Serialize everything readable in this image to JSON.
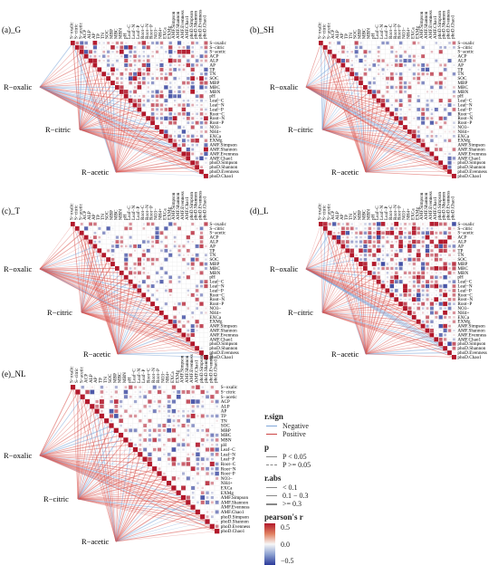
{
  "variables": [
    "S−oxalic",
    "S−citric",
    "S−acetic",
    "ACP",
    "ALP",
    "AP",
    "TP",
    "TN",
    "SOC",
    "MBP",
    "MBC",
    "MBN",
    "pH",
    "Leaf−C",
    "Leaf−N",
    "Leaf−P",
    "Root−C",
    "Root−N",
    "Root−P",
    "NO3−",
    "NH4+",
    "EXCa",
    "EXMg",
    "AMF.Simpson",
    "AMF.Shannon",
    "AMF.Evenness",
    "AMF.Chao1",
    "phoD.Simpson",
    "phoD.Shannon",
    "phoD.Evenness",
    "phoD.Chao1"
  ],
  "root_labels": [
    "R−oxalic",
    "R−citric",
    "R−acetic"
  ],
  "colors": {
    "positive": "#b2182b",
    "neutral": "#f7f7f7",
    "negative": "#2b3a9a",
    "pos_line": "#d9534f",
    "neg_line": "#7fa7d9"
  },
  "legend": {
    "rsign_title": "r.sign",
    "rsign_items": [
      "Negative",
      "Positive"
    ],
    "p_title": "p",
    "p_items": [
      "P < 0.05",
      "P >= 0.05"
    ],
    "rabs_title": "r.abs",
    "rabs_items": [
      "< 0.1",
      "0.1 − 0.3",
      ">= 0.3"
    ],
    "r_title": "pearson's r",
    "r_ticks": [
      "0.5",
      "0.0",
      "−0.5"
    ]
  },
  "chart_data": [
    {
      "type": "heatmap",
      "title": "(a)_G",
      "seed": 11,
      "density": 0.85,
      "bias": 0.25
    },
    {
      "type": "heatmap",
      "title": "(b)_SH",
      "seed": 23,
      "density": 0.55,
      "bias": 0.0
    },
    {
      "type": "heatmap",
      "title": "(c)_T",
      "seed": 37,
      "density": 0.5,
      "bias": 0.05
    },
    {
      "type": "heatmap",
      "title": "(d)_L",
      "seed": 41,
      "density": 0.9,
      "bias": 0.35
    },
    {
      "type": "heatmap",
      "title": "(e)_NL",
      "seed": 53,
      "density": 0.65,
      "bias": 0.15
    }
  ]
}
